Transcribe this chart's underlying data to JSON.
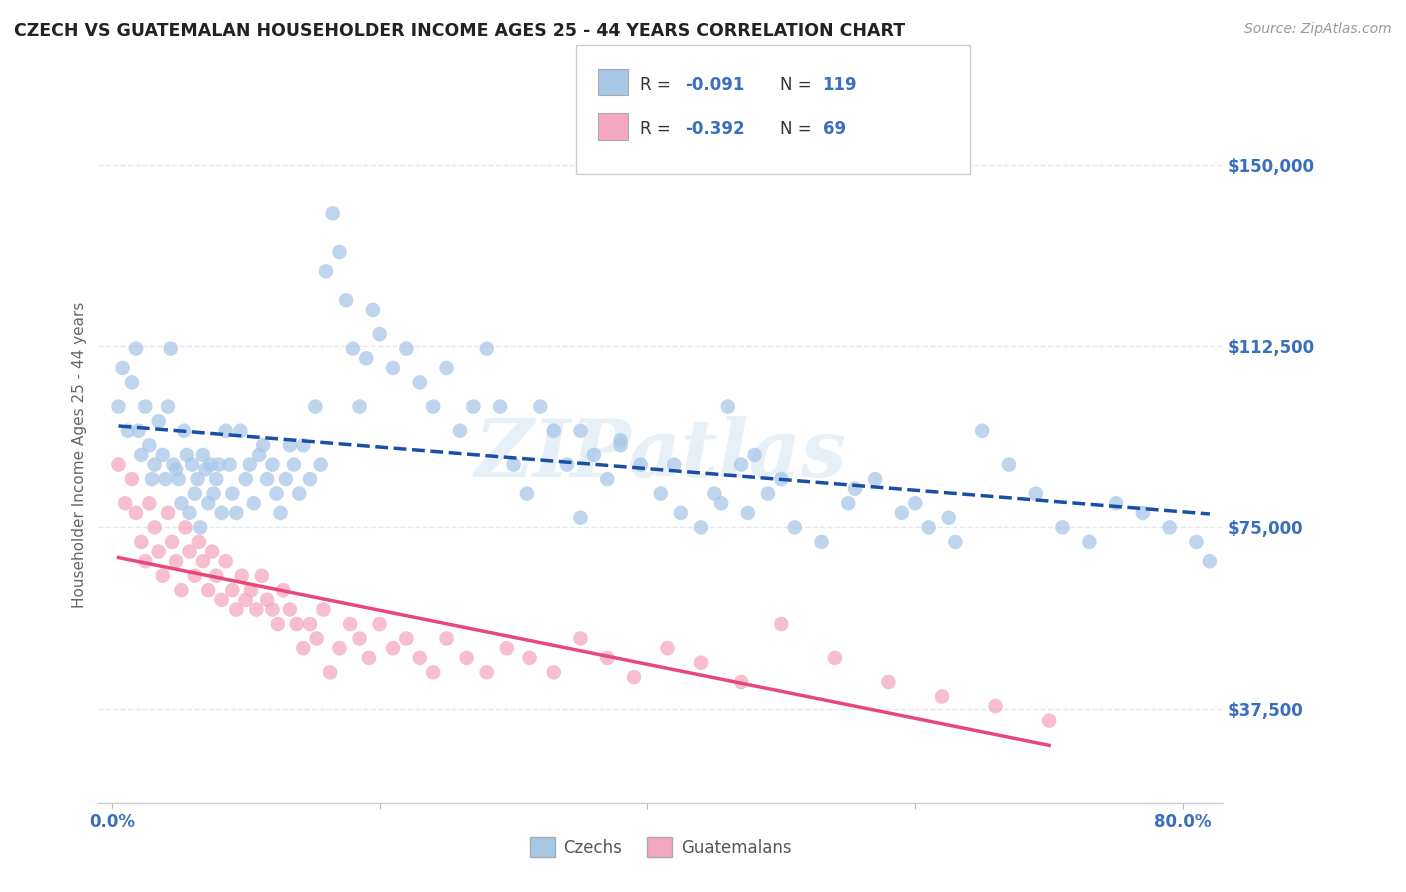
{
  "title": "CZECH VS GUATEMALAN HOUSEHOLDER INCOME AGES 25 - 44 YEARS CORRELATION CHART",
  "source": "Source: ZipAtlas.com",
  "ylabel": "Householder Income Ages 25 - 44 years",
  "ytick_labels": [
    "$37,500",
    "$75,000",
    "$112,500",
    "$150,000"
  ],
  "ytick_values": [
    37500,
    75000,
    112500,
    150000
  ],
  "ylim": [
    18000,
    162000
  ],
  "xlim": [
    -0.01,
    0.83
  ],
  "czech_R": "-0.091",
  "czech_N": "119",
  "guatemalan_R": "-0.392",
  "guatemalan_N": "69",
  "czech_color": "#a8c8e8",
  "guatemalan_color": "#f4a8c0",
  "czech_line_color": "#1a4fa8",
  "guatemalan_line_color": "#e84878",
  "legend_text_color": "#3a6fbd",
  "background_color": "#ffffff",
  "grid_color": "#dde8f0",
  "title_color": "#222222",
  "source_color": "#999999",
  "watermark": "ZIPatlas",
  "czech_x": [
    0.005,
    0.008,
    0.012,
    0.015,
    0.018,
    0.02,
    0.022,
    0.025,
    0.028,
    0.03,
    0.032,
    0.035,
    0.038,
    0.04,
    0.042,
    0.044,
    0.046,
    0.048,
    0.05,
    0.052,
    0.054,
    0.056,
    0.058,
    0.06,
    0.062,
    0.064,
    0.066,
    0.068,
    0.07,
    0.072,
    0.074,
    0.076,
    0.078,
    0.08,
    0.082,
    0.085,
    0.088,
    0.09,
    0.093,
    0.096,
    0.1,
    0.103,
    0.106,
    0.11,
    0.113,
    0.116,
    0.12,
    0.123,
    0.126,
    0.13,
    0.133,
    0.136,
    0.14,
    0.143,
    0.148,
    0.152,
    0.156,
    0.16,
    0.165,
    0.17,
    0.175,
    0.18,
    0.185,
    0.19,
    0.195,
    0.2,
    0.21,
    0.22,
    0.23,
    0.24,
    0.25,
    0.26,
    0.27,
    0.28,
    0.29,
    0.3,
    0.31,
    0.32,
    0.33,
    0.34,
    0.35,
    0.36,
    0.37,
    0.38,
    0.395,
    0.41,
    0.425,
    0.44,
    0.455,
    0.47,
    0.49,
    0.51,
    0.53,
    0.55,
    0.57,
    0.59,
    0.61,
    0.63,
    0.65,
    0.67,
    0.69,
    0.71,
    0.73,
    0.75,
    0.77,
    0.79,
    0.81,
    0.82,
    0.46,
    0.48,
    0.5,
    0.35,
    0.38,
    0.42,
    0.45,
    0.475,
    0.555,
    0.6,
    0.625
  ],
  "czech_y": [
    100000,
    108000,
    95000,
    105000,
    112000,
    95000,
    90000,
    100000,
    92000,
    85000,
    88000,
    97000,
    90000,
    85000,
    100000,
    112000,
    88000,
    87000,
    85000,
    80000,
    95000,
    90000,
    78000,
    88000,
    82000,
    85000,
    75000,
    90000,
    87000,
    80000,
    88000,
    82000,
    85000,
    88000,
    78000,
    95000,
    88000,
    82000,
    78000,
    95000,
    85000,
    88000,
    80000,
    90000,
    92000,
    85000,
    88000,
    82000,
    78000,
    85000,
    92000,
    88000,
    82000,
    92000,
    85000,
    100000,
    88000,
    128000,
    140000,
    132000,
    122000,
    112000,
    100000,
    110000,
    120000,
    115000,
    108000,
    112000,
    105000,
    100000,
    108000,
    95000,
    100000,
    112000,
    100000,
    88000,
    82000,
    100000,
    95000,
    88000,
    95000,
    90000,
    85000,
    92000,
    88000,
    82000,
    78000,
    75000,
    80000,
    88000,
    82000,
    75000,
    72000,
    80000,
    85000,
    78000,
    75000,
    72000,
    95000,
    88000,
    82000,
    75000,
    72000,
    80000,
    78000,
    75000,
    72000,
    68000,
    100000,
    90000,
    85000,
    77000,
    93000,
    88000,
    82000,
    78000,
    83000,
    80000,
    77000
  ],
  "guatemalan_x": [
    0.005,
    0.01,
    0.015,
    0.018,
    0.022,
    0.025,
    0.028,
    0.032,
    0.035,
    0.038,
    0.042,
    0.045,
    0.048,
    0.052,
    0.055,
    0.058,
    0.062,
    0.065,
    0.068,
    0.072,
    0.075,
    0.078,
    0.082,
    0.085,
    0.09,
    0.093,
    0.097,
    0.1,
    0.104,
    0.108,
    0.112,
    0.116,
    0.12,
    0.124,
    0.128,
    0.133,
    0.138,
    0.143,
    0.148,
    0.153,
    0.158,
    0.163,
    0.17,
    0.178,
    0.185,
    0.192,
    0.2,
    0.21,
    0.22,
    0.23,
    0.24,
    0.25,
    0.265,
    0.28,
    0.295,
    0.312,
    0.33,
    0.35,
    0.37,
    0.39,
    0.415,
    0.44,
    0.47,
    0.5,
    0.54,
    0.58,
    0.62,
    0.66,
    0.7
  ],
  "guatemalan_y": [
    88000,
    80000,
    85000,
    78000,
    72000,
    68000,
    80000,
    75000,
    70000,
    65000,
    78000,
    72000,
    68000,
    62000,
    75000,
    70000,
    65000,
    72000,
    68000,
    62000,
    70000,
    65000,
    60000,
    68000,
    62000,
    58000,
    65000,
    60000,
    62000,
    58000,
    65000,
    60000,
    58000,
    55000,
    62000,
    58000,
    55000,
    50000,
    55000,
    52000,
    58000,
    45000,
    50000,
    55000,
    52000,
    48000,
    55000,
    50000,
    52000,
    48000,
    45000,
    52000,
    48000,
    45000,
    50000,
    48000,
    45000,
    52000,
    48000,
    44000,
    50000,
    47000,
    43000,
    55000,
    48000,
    43000,
    40000,
    38000,
    35000
  ]
}
